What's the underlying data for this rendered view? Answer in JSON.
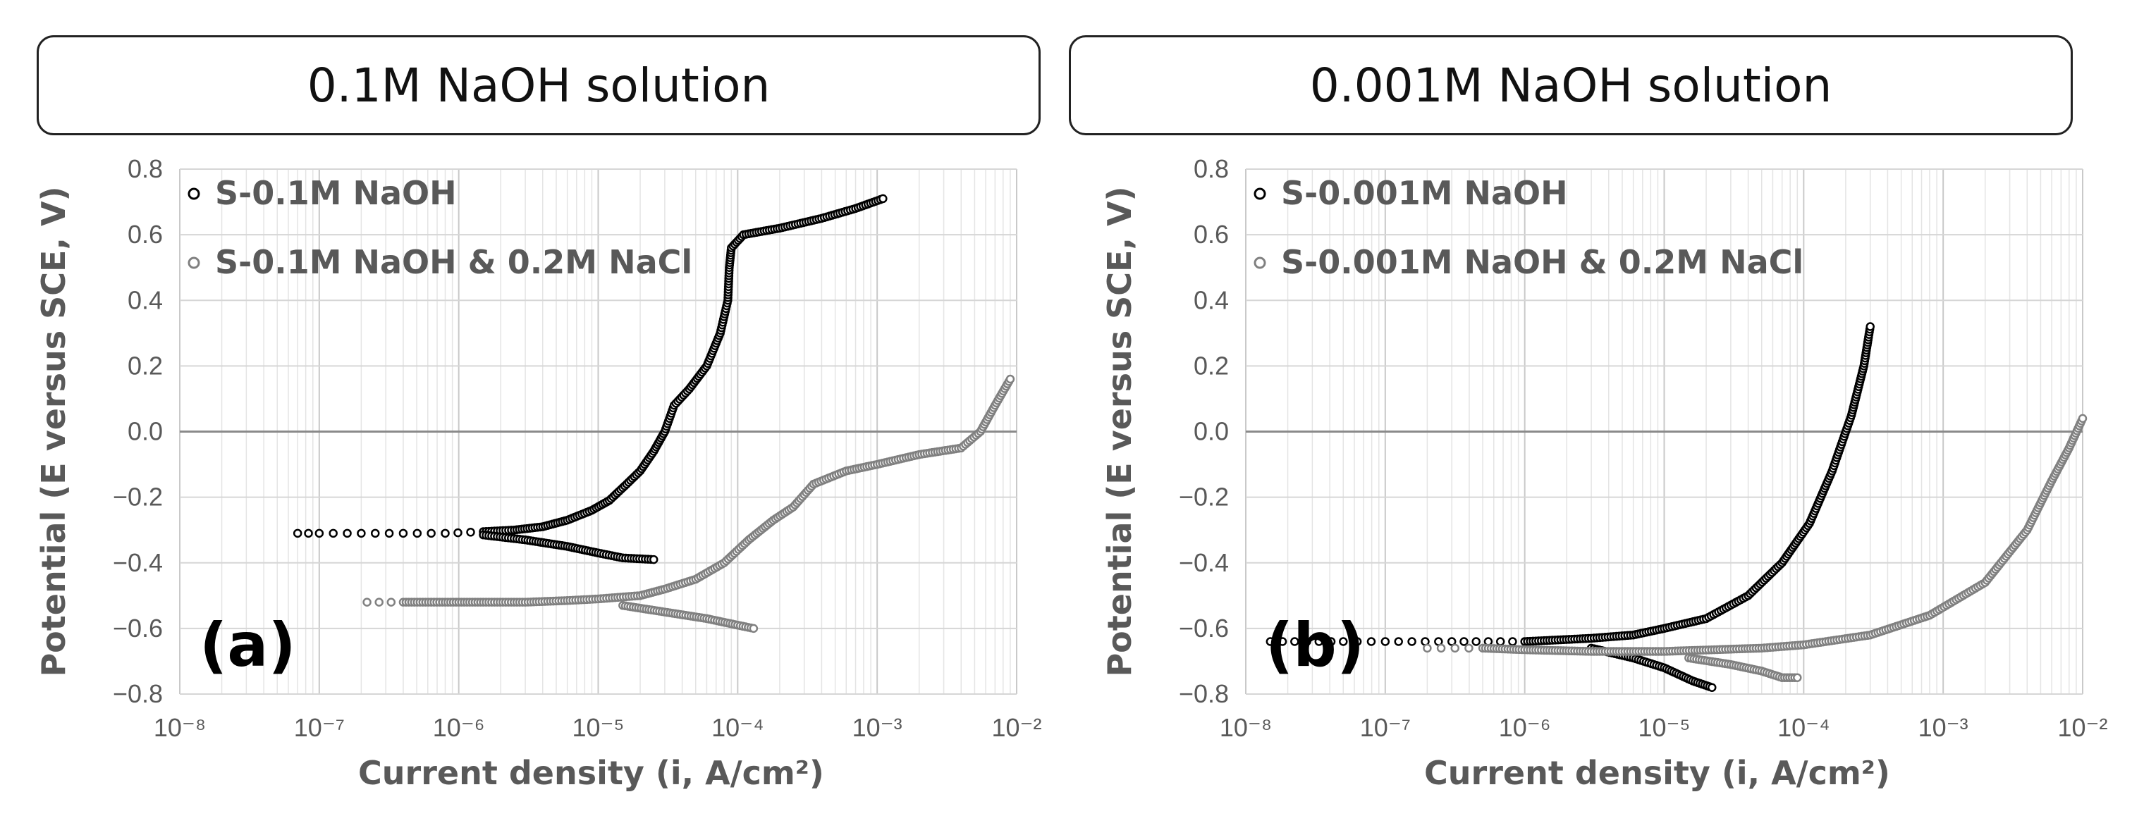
{
  "panels": [
    {
      "header": "0.1M NaOH solution"
    },
    {
      "header": "0.001M NaOH solution"
    }
  ],
  "chart_data": [
    {
      "type": "scatter",
      "panel_label": "(a)",
      "xlabel": "Current density (i, A/cm²)",
      "ylabel": "Potential (E versus SCE, V)",
      "xscale": "log",
      "xlim": [
        1e-08,
        0.01
      ],
      "ylim": [
        -0.8,
        0.8
      ],
      "xtick_labels": [
        "10⁻⁸",
        "10⁻⁷",
        "10⁻⁶",
        "10⁻⁵",
        "10⁻⁴",
        "10⁻³",
        "10⁻²"
      ],
      "ytick_labels": [
        "0.8",
        "0.6",
        "0.4",
        "0.2",
        "0.0",
        "−0.2",
        "−0.4",
        "−0.6",
        "−0.8"
      ],
      "legend_position": "top-left",
      "series": [
        {
          "name": "S-0.1M NaOH",
          "color": "#000000",
          "anodic": [
            [
              7e-08,
              -0.31
            ],
            [
              1e-07,
              -0.31
            ],
            [
              2e-07,
              -0.31
            ],
            [
              4e-07,
              -0.31
            ],
            [
              8e-07,
              -0.31
            ],
            [
              1.5e-06,
              -0.305
            ],
            [
              2.5e-06,
              -0.3
            ],
            [
              4e-06,
              -0.29
            ],
            [
              6e-06,
              -0.27
            ],
            [
              9e-06,
              -0.24
            ],
            [
              1.2e-05,
              -0.21
            ],
            [
              1.6e-05,
              -0.16
            ],
            [
              2e-05,
              -0.12
            ],
            [
              2.5e-05,
              -0.06
            ],
            [
              3e-05,
              0.0
            ],
            [
              3.5e-05,
              0.08
            ],
            [
              4.5e-05,
              0.13
            ],
            [
              6e-05,
              0.2
            ],
            [
              7.5e-05,
              0.3
            ],
            [
              8.5e-05,
              0.4
            ],
            [
              8.7e-05,
              0.5
            ],
            [
              9e-05,
              0.56
            ],
            [
              0.00011,
              0.6
            ],
            [
              0.0002,
              0.62
            ],
            [
              0.0004,
              0.65
            ],
            [
              0.0007,
              0.68
            ],
            [
              0.0011,
              0.71
            ]
          ],
          "cathodic": [
            [
              1.5e-06,
              -0.315
            ],
            [
              3e-06,
              -0.33
            ],
            [
              6e-06,
              -0.35
            ],
            [
              1e-05,
              -0.37
            ],
            [
              1.5e-05,
              -0.385
            ],
            [
              2.5e-05,
              -0.39
            ]
          ]
        },
        {
          "name": "S-0.1M NaOH & 0.2M NaCl",
          "color": "#808080",
          "anodic": [
            [
              2.2e-07,
              -0.52
            ],
            [
              4e-07,
              -0.52
            ],
            [
              8e-07,
              -0.52
            ],
            [
              1.5e-06,
              -0.52
            ],
            [
              3e-06,
              -0.52
            ],
            [
              6e-06,
              -0.515
            ],
            [
              1e-05,
              -0.51
            ],
            [
              2e-05,
              -0.5
            ],
            [
              3e-05,
              -0.48
            ],
            [
              5e-05,
              -0.45
            ],
            [
              8e-05,
              -0.4
            ],
            [
              0.00012,
              -0.33
            ],
            [
              0.00018,
              -0.27
            ],
            [
              0.00025,
              -0.23
            ],
            [
              0.00035,
              -0.16
            ],
            [
              0.0006,
              -0.12
            ],
            [
              0.001,
              -0.1
            ],
            [
              0.002,
              -0.07
            ],
            [
              0.004,
              -0.05
            ],
            [
              0.0055,
              0.0
            ],
            [
              0.007,
              0.08
            ],
            [
              0.009,
              0.16
            ]
          ],
          "cathodic": [
            [
              1.5e-05,
              -0.53
            ],
            [
              3e-05,
              -0.55
            ],
            [
              6e-05,
              -0.57
            ],
            [
              0.0001,
              -0.59
            ],
            [
              0.00013,
              -0.6
            ]
          ]
        }
      ]
    },
    {
      "type": "scatter",
      "panel_label": "(b)",
      "xlabel": "Current density (i, A/cm²)",
      "ylabel": "Potential (E versus SCE, V)",
      "xscale": "log",
      "xlim": [
        1e-08,
        0.01
      ],
      "ylim": [
        -0.8,
        0.8
      ],
      "xtick_labels": [
        "10⁻⁸",
        "10⁻⁷",
        "10⁻⁶",
        "10⁻⁵",
        "10⁻⁴",
        "10⁻³",
        "10⁻²"
      ],
      "ytick_labels": [
        "0.8",
        "0.6",
        "0.4",
        "0.2",
        "0.0",
        "−0.2",
        "−0.4",
        "−0.6",
        "−0.8"
      ],
      "legend_position": "top-left",
      "series": [
        {
          "name": "S-0.001M NaOH",
          "color": "#000000",
          "anodic": [
            [
              1.5e-08,
              -0.64
            ],
            [
              5e-08,
              -0.64
            ],
            [
              1e-07,
              -0.64
            ],
            [
              3e-07,
              -0.64
            ],
            [
              1e-06,
              -0.64
            ],
            [
              3e-06,
              -0.63
            ],
            [
              6e-06,
              -0.62
            ],
            [
              1e-05,
              -0.6
            ],
            [
              2e-05,
              -0.57
            ],
            [
              4e-05,
              -0.5
            ],
            [
              7e-05,
              -0.4
            ],
            [
              0.00011,
              -0.28
            ],
            [
              0.00016,
              -0.12
            ],
            [
              0.00022,
              0.05
            ],
            [
              0.00027,
              0.2
            ],
            [
              0.0003,
              0.32
            ]
          ],
          "cathodic": [
            [
              3e-06,
              -0.66
            ],
            [
              6e-06,
              -0.69
            ],
            [
              1e-05,
              -0.72
            ],
            [
              1.6e-05,
              -0.76
            ],
            [
              2.2e-05,
              -0.78
            ]
          ]
        },
        {
          "name": "S-0.001M NaOH & 0.2M NaCl",
          "color": "#808080",
          "anodic": [
            [
              2e-07,
              -0.66
            ],
            [
              5e-07,
              -0.66
            ],
            [
              1e-06,
              -0.665
            ],
            [
              3e-06,
              -0.67
            ],
            [
              1e-05,
              -0.67
            ],
            [
              5e-05,
              -0.66
            ],
            [
              0.0001,
              -0.65
            ],
            [
              0.0003,
              -0.62
            ],
            [
              0.0008,
              -0.56
            ],
            [
              0.002,
              -0.46
            ],
            [
              0.004,
              -0.3
            ],
            [
              0.006,
              -0.15
            ],
            [
              0.008,
              -0.05
            ],
            [
              0.01,
              0.04
            ]
          ],
          "cathodic": [
            [
              1.5e-05,
              -0.69
            ],
            [
              3e-05,
              -0.71
            ],
            [
              5e-05,
              -0.73
            ],
            [
              7e-05,
              -0.75
            ],
            [
              9e-05,
              -0.75
            ]
          ]
        }
      ]
    }
  ]
}
